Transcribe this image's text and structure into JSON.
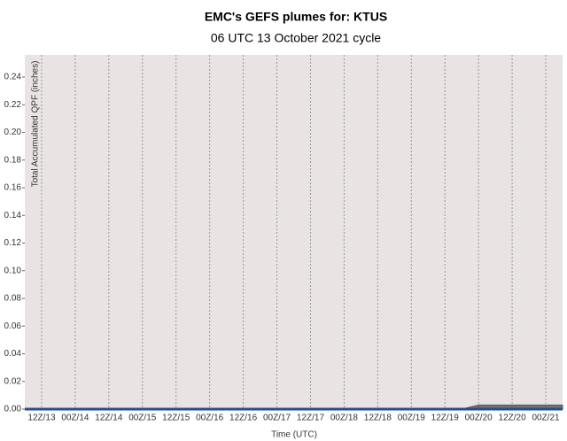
{
  "chart_data": {
    "type": "area-line",
    "title": "EMC's GEFS plumes for: KTUS",
    "subtitle": "06 UTC 13 October 2021 cycle",
    "x_label": "Time (UTC)",
    "y_label": "Total Accumulated QPF (inches)",
    "x": [
      0,
      6,
      12,
      18,
      24,
      30,
      36,
      42,
      48,
      54,
      60,
      66,
      72,
      78,
      84,
      90,
      96,
      102,
      108,
      114,
      120,
      126,
      132,
      138,
      144,
      150,
      156,
      162,
      168,
      174,
      180,
      186,
      192
    ],
    "series": [
      {
        "kind": "area",
        "color": "#555555",
        "values": [
          0,
          0,
          0,
          0,
          0,
          0,
          0,
          0,
          0,
          0,
          0,
          0,
          0,
          0,
          0,
          0,
          0,
          0,
          0,
          0,
          0,
          0,
          0,
          0,
          0,
          0,
          0,
          0.003,
          0.003,
          0.003,
          0.003,
          0.003,
          0.003
        ]
      },
      {
        "kind": "line",
        "color": "#1f4e9a",
        "values": [
          0,
          0,
          0,
          0,
          0,
          0,
          0,
          0,
          0,
          0,
          0,
          0,
          0,
          0,
          0,
          0,
          0,
          0,
          0,
          0,
          0,
          0,
          0,
          0,
          0,
          0,
          0,
          0,
          0,
          0,
          0,
          0,
          0
        ]
      }
    ],
    "xlim": [
      0,
      192
    ],
    "xticks": [
      {
        "value": 6,
        "label": "12Z/13"
      },
      {
        "value": 18,
        "label": "00Z/14"
      },
      {
        "value": 30,
        "label": "12Z/14"
      },
      {
        "value": 42,
        "label": "00Z/15"
      },
      {
        "value": 54,
        "label": "12Z/15"
      },
      {
        "value": 66,
        "label": "00Z/16"
      },
      {
        "value": 78,
        "label": "12Z/16"
      },
      {
        "value": 90,
        "label": "00Z/17"
      },
      {
        "value": 102,
        "label": "12Z/17"
      },
      {
        "value": 114,
        "label": "00Z/18"
      },
      {
        "value": 126,
        "label": "12Z/18"
      },
      {
        "value": 138,
        "label": "00Z/19"
      },
      {
        "value": 150,
        "label": "12Z/19"
      },
      {
        "value": 162,
        "label": "00Z/20"
      },
      {
        "value": 174,
        "label": "12Z/20"
      },
      {
        "value": 186,
        "label": "00Z/21"
      }
    ],
    "ylim": [
      0,
      0.256
    ],
    "yticks": [
      {
        "value": 0,
        "label": "0.00"
      },
      {
        "value": 0.02,
        "label": "0.02"
      },
      {
        "value": 0.04,
        "label": "0.04"
      },
      {
        "value": 0.06,
        "label": "0.06"
      },
      {
        "value": 0.08,
        "label": "0.08"
      },
      {
        "value": 0.1,
        "label": "0.10"
      },
      {
        "value": 0.12,
        "label": "0.12"
      },
      {
        "value": 0.14,
        "label": "0.14"
      },
      {
        "value": 0.16,
        "label": "0.16"
      },
      {
        "value": 0.18,
        "label": "0.18"
      },
      {
        "value": 0.2,
        "label": "0.20"
      },
      {
        "value": 0.22,
        "label": "0.22"
      },
      {
        "value": 0.24,
        "label": "0.24"
      }
    ],
    "grid": "x",
    "background": "#e8e4e4"
  }
}
